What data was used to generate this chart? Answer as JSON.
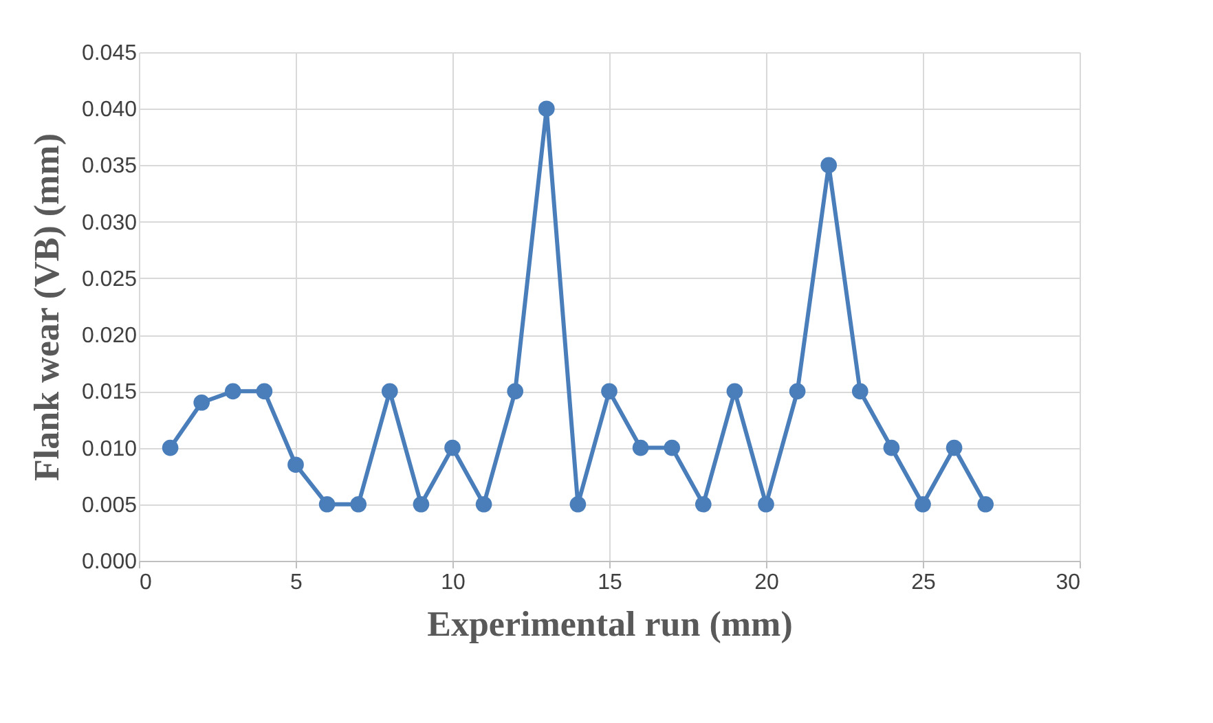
{
  "chart_data": {
    "type": "line",
    "xlabel": "Experimental run (mm)",
    "ylabel": "Flank wear (VB) (mm)",
    "x": [
      1,
      2,
      3,
      4,
      5,
      6,
      7,
      8,
      9,
      10,
      11,
      12,
      13,
      14,
      15,
      16,
      17,
      18,
      19,
      20,
      21,
      22,
      23,
      24,
      25,
      26,
      27
    ],
    "series": [
      {
        "color": "#4a7ebb",
        "values": [
          0.01,
          0.014,
          0.015,
          0.015,
          0.0085,
          0.005,
          0.005,
          0.015,
          0.005,
          0.01,
          0.005,
          0.015,
          0.04,
          0.005,
          0.015,
          0.01,
          0.01,
          0.005,
          0.015,
          0.005,
          0.015,
          0.035,
          0.015,
          0.01,
          0.005,
          0.01,
          0.005
        ]
      }
    ],
    "xlim": [
      0,
      30
    ],
    "xticks": [
      0,
      5,
      10,
      15,
      20,
      25,
      30
    ],
    "ylim": [
      0,
      0.045
    ],
    "yticks": [
      {
        "value": 0,
        "label": "0.000"
      },
      {
        "value": 0.005,
        "label": "0.005"
      },
      {
        "value": 0.01,
        "label": "0.010"
      },
      {
        "value": 0.015,
        "label": "0.015"
      },
      {
        "value": 0.02,
        "label": "0.020"
      },
      {
        "value": 0.025,
        "label": "0.025"
      },
      {
        "value": 0.03,
        "label": "0.030"
      },
      {
        "value": 0.035,
        "label": "0.035"
      },
      {
        "value": 0.04,
        "label": "0.040"
      },
      {
        "value": 0.045,
        "label": "0.045"
      }
    ],
    "grid": true,
    "marker": "circle",
    "line_style": "solid",
    "legend": false
  }
}
